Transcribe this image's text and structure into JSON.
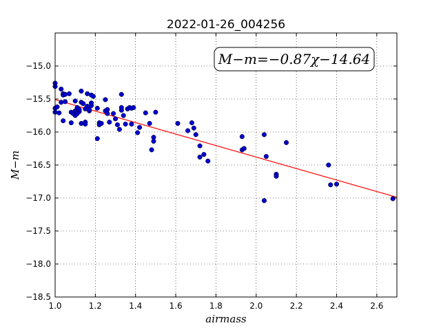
{
  "chart_data": {
    "type": "scatter",
    "title": "2022-01-26_004256",
    "xlabel": "airmass",
    "ylabel": "M−m",
    "xlim": [
      1.0,
      2.7
    ],
    "ylim": [
      -18.5,
      -14.5
    ],
    "xticks": [
      1.0,
      1.2,
      1.4,
      1.6,
      1.8,
      2.0,
      2.2,
      2.4,
      2.6
    ],
    "xtick_labels": [
      "1.0",
      "1.2",
      "1.4",
      "1.6",
      "1.8",
      "2.0",
      "2.2",
      "2.4",
      "2.6"
    ],
    "yticks": [
      -15.0,
      -15.5,
      -16.0,
      -16.5,
      -17.0,
      -17.5,
      -18.0,
      -18.5
    ],
    "ytick_labels": [
      "−15.0",
      "−15.5",
      "−16.0",
      "−16.5",
      "−17.0",
      "−17.5",
      "−18.0",
      "−18.5"
    ],
    "grid": true,
    "annotation": "M−m=−0.87χ−14.64",
    "fit": {
      "slope": -0.87,
      "intercept": -14.64,
      "color": "#ff0000"
    },
    "marker_color": "#0000cc",
    "points": [
      [
        1.0,
        -15.26
      ],
      [
        1.0,
        -15.31
      ],
      [
        1.0,
        -15.64
      ],
      [
        1.0,
        -15.7
      ],
      [
        1.01,
        -15.62
      ],
      [
        1.02,
        -15.71
      ],
      [
        1.03,
        -15.55
      ],
      [
        1.03,
        -15.35
      ],
      [
        1.04,
        -15.42
      ],
      [
        1.04,
        -15.44
      ],
      [
        1.04,
        -15.83
      ],
      [
        1.05,
        -15.54
      ],
      [
        1.05,
        -15.43
      ],
      [
        1.07,
        -15.42
      ],
      [
        1.08,
        -15.7
      ],
      [
        1.08,
        -15.86
      ],
      [
        1.09,
        -15.72
      ],
      [
        1.1,
        -15.53
      ],
      [
        1.1,
        -15.68
      ],
      [
        1.1,
        -15.75
      ],
      [
        1.11,
        -15.72
      ],
      [
        1.11,
        -15.63
      ],
      [
        1.12,
        -15.69
      ],
      [
        1.12,
        -15.66
      ],
      [
        1.13,
        -15.55
      ],
      [
        1.13,
        -15.38
      ],
      [
        1.13,
        -15.87
      ],
      [
        1.14,
        -15.57
      ],
      [
        1.15,
        -15.65
      ],
      [
        1.15,
        -15.85
      ],
      [
        1.15,
        -15.88
      ],
      [
        1.16,
        -15.61
      ],
      [
        1.16,
        -15.42
      ],
      [
        1.17,
        -15.68
      ],
      [
        1.17,
        -15.66
      ],
      [
        1.18,
        -15.6
      ],
      [
        1.18,
        -15.56
      ],
      [
        1.18,
        -15.44
      ],
      [
        1.19,
        -15.46
      ],
      [
        1.21,
        -16.1
      ],
      [
        1.21,
        -15.64
      ],
      [
        1.22,
        -15.86
      ],
      [
        1.22,
        -15.89
      ],
      [
        1.23,
        -15.87
      ],
      [
        1.25,
        -15.68
      ],
      [
        1.25,
        -15.51
      ],
      [
        1.26,
        -15.66
      ],
      [
        1.26,
        -15.72
      ],
      [
        1.27,
        -15.85
      ],
      [
        1.29,
        -15.72
      ],
      [
        1.3,
        -15.8
      ],
      [
        1.31,
        -15.89
      ],
      [
        1.32,
        -15.96
      ],
      [
        1.33,
        -15.67
      ],
      [
        1.33,
        -15.43
      ],
      [
        1.33,
        -15.63
      ],
      [
        1.34,
        -15.75
      ],
      [
        1.35,
        -15.88
      ],
      [
        1.36,
        -15.65
      ],
      [
        1.37,
        -15.63
      ],
      [
        1.38,
        -15.88
      ],
      [
        1.38,
        -15.64
      ],
      [
        1.39,
        -15.63
      ],
      [
        1.41,
        -16.01
      ],
      [
        1.42,
        -15.93
      ],
      [
        1.45,
        -15.71
      ],
      [
        1.47,
        -15.87
      ],
      [
        1.48,
        -16.27
      ],
      [
        1.49,
        -16.14
      ],
      [
        1.49,
        -16.08
      ],
      [
        1.5,
        -15.7
      ],
      [
        1.61,
        -15.87
      ],
      [
        1.66,
        -15.98
      ],
      [
        1.68,
        -15.86
      ],
      [
        1.69,
        -15.94
      ],
      [
        1.7,
        -16.04
      ],
      [
        1.72,
        -16.21
      ],
      [
        1.72,
        -16.38
      ],
      [
        1.74,
        -16.34
      ],
      [
        1.76,
        -16.44
      ],
      [
        1.93,
        -16.07
      ],
      [
        1.93,
        -16.27
      ],
      [
        1.94,
        -16.25
      ],
      [
        2.04,
        -17.04
      ],
      [
        2.04,
        -16.04
      ],
      [
        2.05,
        -16.37
      ],
      [
        2.1,
        -16.64
      ],
      [
        2.1,
        -16.67
      ],
      [
        2.15,
        -16.16
      ],
      [
        2.36,
        -16.5
      ],
      [
        2.37,
        -16.8
      ],
      [
        2.4,
        -16.79
      ],
      [
        2.68,
        -17.01
      ]
    ]
  }
}
